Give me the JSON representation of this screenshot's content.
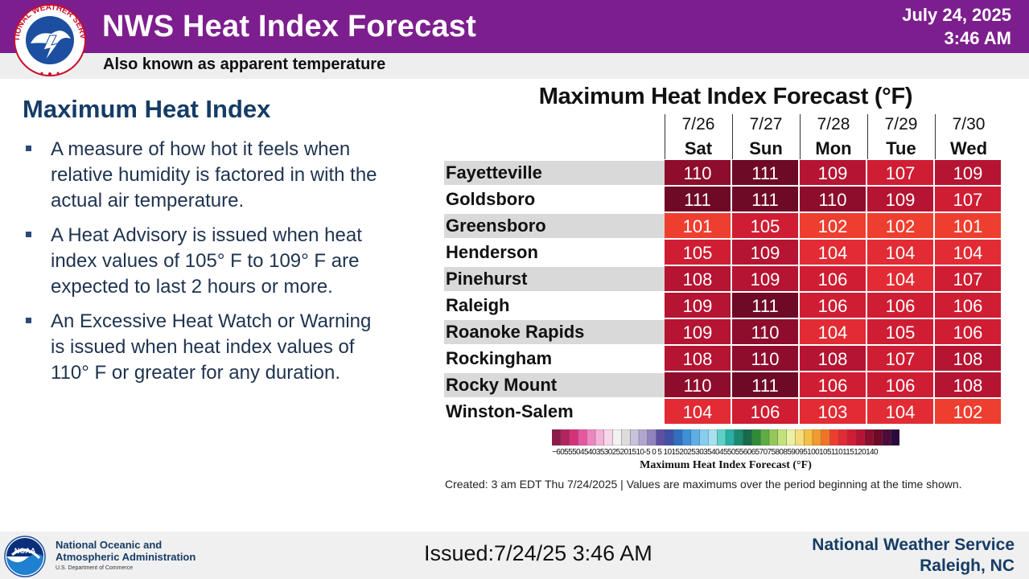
{
  "header": {
    "title": "NWS Heat Index Forecast",
    "subtitle": "Also known as apparent temperature",
    "date": "July 24, 2025",
    "time": "3:46 AM",
    "logo_icon": "nws-seal-icon",
    "accent_color": "#7d1e8e"
  },
  "left_panel": {
    "title": "Maximum Heat Index",
    "bullets": [
      "A measure of how hot it feels when relative humidity is factored in with the actual air temperature.",
      "A Heat Advisory is issued when heat index values of 105° F to 109° F are expected to last 2 hours or more.",
      "An Excessive Heat Watch or Warning is issued when heat index values of 110° F or greater for any duration."
    ]
  },
  "chart_data": {
    "type": "heatmap",
    "title": "Maximum Heat Index Forecast (°F)",
    "columns": [
      {
        "date": "7/26",
        "day": "Sat"
      },
      {
        "date": "7/27",
        "day": "Sun"
      },
      {
        "date": "7/28",
        "day": "Mon"
      },
      {
        "date": "7/29",
        "day": "Tue"
      },
      {
        "date": "7/30",
        "day": "Wed"
      }
    ],
    "rows": [
      {
        "location": "Fayetteville",
        "values": [
          110,
          111,
          109,
          107,
          109
        ]
      },
      {
        "location": "Goldsboro",
        "values": [
          111,
          111,
          110,
          109,
          107
        ]
      },
      {
        "location": "Greensboro",
        "values": [
          101,
          105,
          102,
          102,
          101
        ]
      },
      {
        "location": "Henderson",
        "values": [
          105,
          109,
          104,
          104,
          104
        ]
      },
      {
        "location": "Pinehurst",
        "values": [
          108,
          109,
          106,
          104,
          107
        ]
      },
      {
        "location": "Raleigh",
        "values": [
          109,
          111,
          106,
          106,
          106
        ]
      },
      {
        "location": "Roanoke Rapids",
        "values": [
          109,
          110,
          104,
          105,
          106
        ]
      },
      {
        "location": "Rockingham",
        "values": [
          108,
          110,
          108,
          107,
          108
        ]
      },
      {
        "location": "Rocky Mount",
        "values": [
          110,
          111,
          106,
          106,
          108
        ]
      },
      {
        "location": "Winston-Salem",
        "values": [
          104,
          106,
          103,
          104,
          102
        ]
      }
    ],
    "color_scale": {
      "label": "Maximum Heat Index Forecast (°F)",
      "tick_text": "−6055504540353025201510-5 0  5 101520253035404550556065707580859095100105110115120140",
      "stops": [
        {
          "min": -60,
          "color": "#8c1a4a"
        },
        {
          "min": -55,
          "color": "#b3245e"
        },
        {
          "min": -50,
          "color": "#d4327a"
        },
        {
          "min": -45,
          "color": "#e657a0"
        },
        {
          "min": -40,
          "color": "#ee86c0"
        },
        {
          "min": -35,
          "color": "#f4b3d8"
        },
        {
          "min": -30,
          "color": "#f8d6ea"
        },
        {
          "min": -25,
          "color": "#f2f2f2"
        },
        {
          "min": -20,
          "color": "#dcdcdc"
        },
        {
          "min": -15,
          "color": "#c9c2dd"
        },
        {
          "min": -10,
          "color": "#b0a6d0"
        },
        {
          "min": -5,
          "color": "#9283c0"
        },
        {
          "min": 0,
          "color": "#5e4fa2"
        },
        {
          "min": 5,
          "color": "#4051a8"
        },
        {
          "min": 10,
          "color": "#2f6fc0"
        },
        {
          "min": 15,
          "color": "#3f8fd8"
        },
        {
          "min": 20,
          "color": "#5eaee6"
        },
        {
          "min": 25,
          "color": "#86cdee"
        },
        {
          "min": 30,
          "color": "#a8e0f0"
        },
        {
          "min": 35,
          "color": "#5fd0c8"
        },
        {
          "min": 40,
          "color": "#27b0a4"
        },
        {
          "min": 45,
          "color": "#1b8a70"
        },
        {
          "min": 50,
          "color": "#176b48"
        },
        {
          "min": 55,
          "color": "#2f8a3a"
        },
        {
          "min": 60,
          "color": "#5eac43"
        },
        {
          "min": 65,
          "color": "#93c95a"
        },
        {
          "min": 70,
          "color": "#c4e27c"
        },
        {
          "min": 75,
          "color": "#ecf0a4"
        },
        {
          "min": 80,
          "color": "#f7dc7a"
        },
        {
          "min": 85,
          "color": "#f5c046"
        },
        {
          "min": 90,
          "color": "#f29b2e"
        },
        {
          "min": 95,
          "color": "#ef7425"
        },
        {
          "min": 100,
          "color": "#ee3e2f"
        },
        {
          "min": 103,
          "color": "#e22b34"
        },
        {
          "min": 105,
          "color": "#cf1d33"
        },
        {
          "min": 108,
          "color": "#b51432"
        },
        {
          "min": 110,
          "color": "#8e0d2c"
        },
        {
          "min": 111,
          "color": "#6e0a26"
        },
        {
          "min": 115,
          "color": "#4e0b3a"
        },
        {
          "min": 120,
          "color": "#2b0a3c"
        }
      ]
    }
  },
  "note": "Created: 3 am EDT Thu 7/24/2025  |  Values are maximums over the period beginning at the time shown.",
  "footer": {
    "noaa_line1": "National Oceanic and",
    "noaa_line2": "Atmospheric Administration",
    "noaa_dept": "U.S. Department of Commerce",
    "issued": "Issued:7/24/25 3:46 AM",
    "office_name": "National Weather Service",
    "office_location": "Raleigh, NC",
    "noaa_icon": "noaa-logo-icon"
  }
}
